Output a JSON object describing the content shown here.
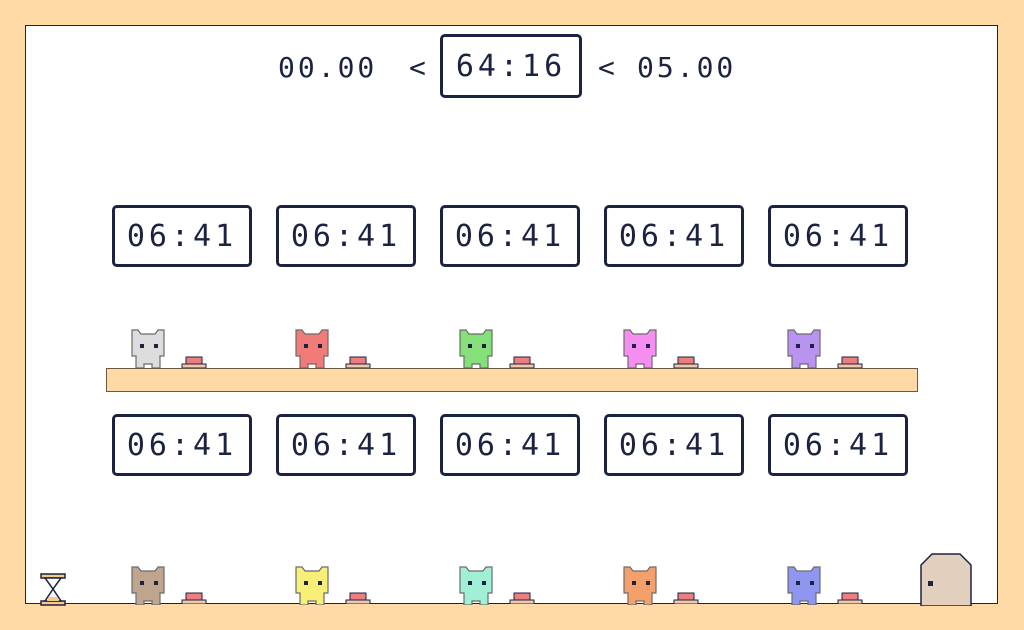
{
  "header": {
    "left_time": "00.00",
    "left_sep": "<",
    "main_time": "64:16",
    "right_sep": "<",
    "right_time": "05.00"
  },
  "timers_top": [
    "06:41",
    "06:41",
    "06:41",
    "06:41",
    "06:41"
  ],
  "timers_bottom": [
    "06:41",
    "06:41",
    "06:41",
    "06:41",
    "06:41"
  ],
  "cats_upper": [
    {
      "icon": "cat-icon",
      "color": "#dcdcdc"
    },
    {
      "icon": "cat-icon",
      "color": "#f07b78"
    },
    {
      "icon": "cat-icon",
      "color": "#86e07a"
    },
    {
      "icon": "cat-icon",
      "color": "#f58ef0"
    },
    {
      "icon": "cat-icon",
      "color": "#b894f0"
    }
  ],
  "cats_lower": [
    {
      "icon": "cat-icon",
      "color": "#bfa48e"
    },
    {
      "icon": "cat-icon",
      "color": "#f7ef76"
    },
    {
      "icon": "cat-icon",
      "color": "#9ff0d6"
    },
    {
      "icon": "cat-icon",
      "color": "#f5a06a"
    },
    {
      "icon": "cat-icon",
      "color": "#8e96f0"
    }
  ],
  "colors": {
    "background": "#ffd9a6",
    "stage": "#ffffff",
    "outline": "#1c2340",
    "platform": "#ffd9a6",
    "button": "#ee7d7d",
    "door": "#e2cfbd"
  },
  "icons": {
    "door": "door-icon",
    "hourglass": "hourglass-icon",
    "button": "pressure-button-icon"
  }
}
